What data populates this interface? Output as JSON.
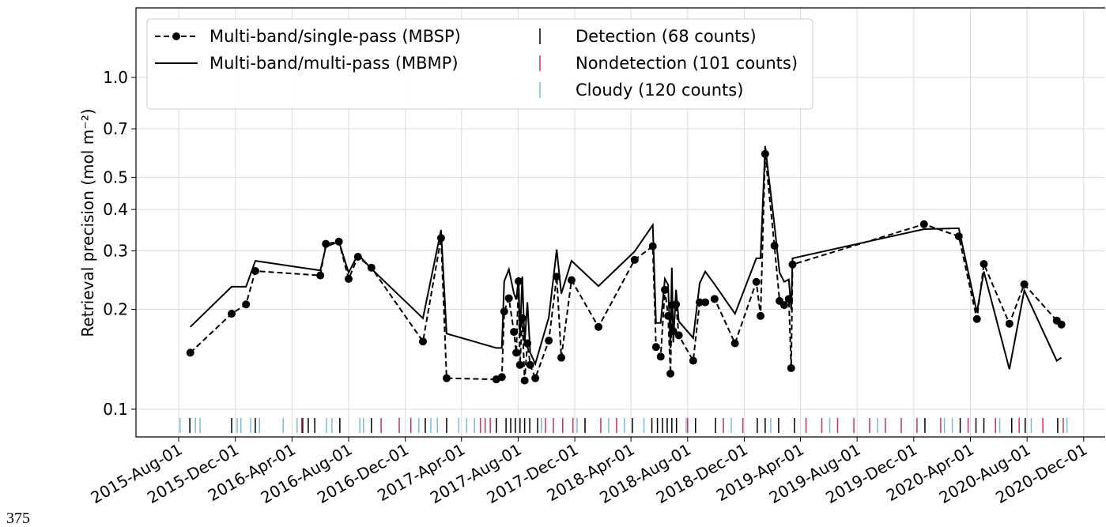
{
  "chart_data": {
    "type": "line",
    "y_label": "Retrieval precision (mol m⁻²)",
    "log_y": true,
    "grid": true,
    "legend_loc": "upper left",
    "ylim": [
      0.0825,
      1.62
    ],
    "yticks": [
      0.1,
      0.2,
      0.3,
      0.4,
      0.5,
      0.7,
      {
        "value": 1,
        "label": "1.0"
      }
    ],
    "xlim": [
      "2015-05-01",
      "2021-01-18"
    ],
    "xticks": [
      {
        "value": "2015-08-01",
        "label": "2015-Aug-01"
      },
      {
        "value": "2015-12-01",
        "label": "2015-Dec-01"
      },
      {
        "value": "2016-04-01",
        "label": "2016-Apr-01"
      },
      {
        "value": "2016-08-01",
        "label": "2016-Aug-01"
      },
      {
        "value": "2016-12-01",
        "label": "2016-Dec-01"
      },
      {
        "value": "2017-04-01",
        "label": "2017-Apr-01"
      },
      {
        "value": "2017-08-01",
        "label": "2017-Aug-01"
      },
      {
        "value": "2017-12-01",
        "label": "2017-Dec-01"
      },
      {
        "value": "2018-04-01",
        "label": "2018-Apr-01"
      },
      {
        "value": "2018-08-01",
        "label": "2018-Aug-01"
      },
      {
        "value": "2018-12-01",
        "label": "2018-Dec-01"
      },
      {
        "value": "2019-04-01",
        "label": "2019-Apr-01"
      },
      {
        "value": "2019-08-01",
        "label": "2019-Aug-01"
      },
      {
        "value": "2019-12-01",
        "label": "2019-Dec-01"
      },
      {
        "value": "2020-04-01",
        "label": "2020-Apr-01"
      },
      {
        "value": "2020-08-01",
        "label": "2020-Aug-01"
      },
      {
        "value": "2020-12-01",
        "label": "2020-Dec-01"
      }
    ],
    "x": [
      "2015-08-26",
      "2015-11-23",
      "2015-12-24",
      "2016-01-13",
      "2016-06-01",
      "2016-06-13",
      "2016-07-11",
      "2016-08-01",
      "2016-08-21",
      "2016-09-19",
      "2017-01-08",
      "2017-02-16",
      "2017-02-28",
      "2017-06-15",
      "2017-06-27",
      "2017-07-02",
      "2017-07-12",
      "2017-07-23",
      "2017-07-28",
      "2017-08-02",
      "2017-08-05",
      "2017-08-10",
      "2017-08-15",
      "2017-08-21",
      "2017-08-27",
      "2017-09-07",
      "2017-10-06",
      "2017-10-23",
      "2017-11-02",
      "2017-11-24",
      "2018-01-21",
      "2018-04-09",
      "2018-05-18",
      "2018-05-25",
      "2018-06-04",
      "2018-06-13",
      "2018-06-20",
      "2018-06-25",
      "2018-06-28",
      "2018-07-01",
      "2018-07-07",
      "2018-07-13",
      "2018-08-13",
      "2018-08-27",
      "2018-09-08",
      "2018-09-28",
      "2018-11-11",
      "2018-12-27",
      "2019-01-05",
      "2019-01-15",
      "2019-02-04",
      "2019-02-15",
      "2019-02-25",
      "2019-03-07",
      "2019-03-12",
      "2019-03-15",
      "2019-12-23",
      "2020-03-07",
      "2020-04-15",
      "2020-04-30",
      "2020-06-24",
      "2020-07-26",
      "2020-10-04",
      "2020-10-14"
    ],
    "series": [
      {
        "name": "Multi-band/single-pass (MBSP)",
        "color": "#000000",
        "dashed": true,
        "markers": true,
        "values": [
          0.148,
          0.194,
          0.207,
          0.261,
          0.253,
          0.315,
          0.32,
          0.247,
          0.288,
          0.267,
          0.16,
          0.328,
          0.124,
          0.123,
          0.125,
          0.197,
          0.216,
          0.171,
          0.148,
          0.243,
          0.136,
          0.188,
          0.122,
          0.158,
          0.136,
          0.124,
          0.161,
          0.251,
          0.143,
          0.245,
          0.177,
          0.282,
          0.31,
          0.154,
          0.144,
          0.229,
          0.191,
          0.128,
          0.206,
          0.172,
          0.207,
          0.167,
          0.14,
          0.21,
          0.21,
          0.215,
          0.158,
          0.242,
          0.191,
          0.588,
          0.311,
          0.212,
          0.206,
          0.215,
          0.133,
          0.273,
          0.361,
          0.332,
          0.187,
          0.274,
          0.181,
          0.238,
          0.185,
          0.18
        ]
      },
      {
        "name": "Multi-band/multi-pass (MBMP)",
        "color": "#000000",
        "dashed": false,
        "markers": false,
        "values": [
          0.177,
          0.234,
          0.234,
          0.28,
          0.262,
          0.309,
          0.32,
          0.258,
          0.293,
          0.265,
          0.188,
          0.347,
          0.169,
          0.153,
          0.153,
          0.243,
          0.264,
          0.223,
          0.214,
          0.25,
          0.165,
          0.251,
          0.157,
          0.21,
          0.148,
          0.137,
          0.189,
          0.303,
          0.223,
          0.28,
          0.235,
          0.299,
          0.359,
          0.182,
          0.182,
          0.247,
          0.237,
          0.153,
          0.267,
          0.159,
          0.229,
          0.184,
          0.164,
          0.24,
          0.26,
          0.238,
          0.194,
          0.285,
          0.285,
          0.621,
          0.359,
          0.258,
          0.242,
          0.246,
          0.2,
          0.285,
          0.349,
          0.351,
          0.196,
          0.26,
          0.132,
          0.228,
          0.14,
          0.143
        ]
      }
    ],
    "rug": [
      {
        "name": "Detection (68 counts)",
        "color": "#000000",
        "dates": [
          "2015-08-25",
          "2015-11-23",
          "2016-01-13",
          "2016-04-24",
          "2016-05-06",
          "2016-05-20",
          "2016-07-13",
          "2016-09-19",
          "2017-01-13",
          "2017-02-28",
          "2017-06-15",
          "2017-07-06",
          "2017-07-16",
          "2017-07-26",
          "2017-08-05",
          "2017-08-15",
          "2017-08-26",
          "2017-09-12",
          "2017-12-23",
          "2018-04-04",
          "2018-05-16",
          "2018-05-28",
          "2018-06-08",
          "2018-06-18",
          "2018-06-28",
          "2018-07-08",
          "2018-08-18",
          "2018-09-30",
          "2018-12-29",
          "2019-01-15",
          "2019-02-13",
          "2019-03-19",
          "2019-12-25",
          "2020-03-10",
          "2020-04-13",
          "2020-04-30",
          "2020-06-29",
          "2020-07-28",
          "2020-10-06"
        ]
      },
      {
        "name": "Nondetection (101 counts)",
        "color": "#c8305a",
        "dates": [
          "2016-04-22",
          "2016-10-10",
          "2016-11-18",
          "2016-12-13",
          "2017-05-12",
          "2017-05-22",
          "2017-06-02",
          "2017-09-29",
          "2017-10-16",
          "2017-11-05",
          "2017-11-27",
          "2018-01-26",
          "2018-03-01",
          "2018-08-01",
          "2018-10-17",
          "2018-11-28",
          "2019-04-13",
          "2019-05-17",
          "2019-06-20",
          "2019-07-25",
          "2019-08-28",
          "2019-10-01",
          "2019-11-04",
          "2019-12-08",
          "2020-01-28",
          "2020-03-27",
          "2020-05-25",
          "2020-07-15",
          "2020-09-04",
          "2020-10-18"
        ]
      },
      {
        "name": "Cloudy (120 counts)",
        "color": "#7fb8dc",
        "dates": [
          "2015-08-04",
          "2015-09-06",
          "2015-09-16",
          "2015-12-05",
          "2015-12-13",
          "2016-01-03",
          "2016-01-22",
          "2016-03-13",
          "2016-04-12",
          "2016-06-14",
          "2016-06-26",
          "2016-08-25",
          "2016-09-02",
          "2016-12-30",
          "2017-01-25",
          "2017-02-08",
          "2017-03-26",
          "2017-04-12",
          "2017-04-29",
          "2017-09-20",
          "2017-12-06",
          "2018-02-12",
          "2018-03-18",
          "2018-04-29",
          "2018-07-29",
          "2018-11-03",
          "2019-01-27",
          "2019-06-03",
          "2019-09-14",
          "2020-02-05",
          "2020-02-22",
          "2020-06-03",
          "2020-08-10",
          "2020-10-26"
        ]
      }
    ]
  },
  "page_number": "375"
}
